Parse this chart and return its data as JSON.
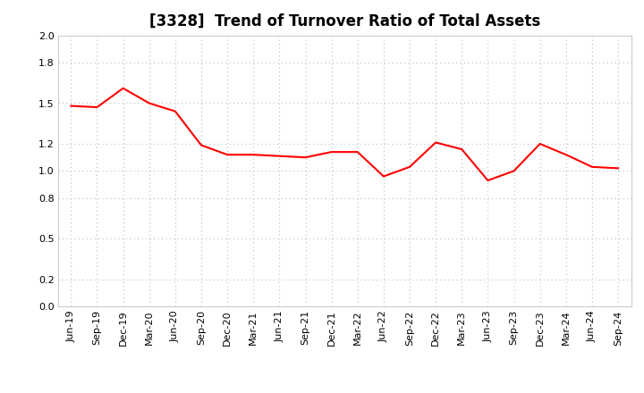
{
  "title": "[3328]  Trend of Turnover Ratio of Total Assets",
  "labels": [
    "Jun-19",
    "Sep-19",
    "Dec-19",
    "Mar-20",
    "Jun-20",
    "Sep-20",
    "Dec-20",
    "Mar-21",
    "Jun-21",
    "Sep-21",
    "Dec-21",
    "Mar-22",
    "Jun-22",
    "Sep-22",
    "Dec-22",
    "Mar-23",
    "Jun-23",
    "Sep-23",
    "Dec-23",
    "Mar-24",
    "Jun-24",
    "Sep-24"
  ],
  "values": [
    1.48,
    1.47,
    1.61,
    1.5,
    1.44,
    1.19,
    1.12,
    1.12,
    1.11,
    1.1,
    1.14,
    1.14,
    0.96,
    1.03,
    1.21,
    1.16,
    0.93,
    1.0,
    1.2,
    1.12,
    1.03,
    1.02
  ],
  "line_color": "#FF0000",
  "line_width": 1.5,
  "ylim": [
    0.0,
    2.0
  ],
  "yticks": [
    0.0,
    0.2,
    0.5,
    0.8,
    1.0,
    1.2,
    1.5,
    1.8,
    2.0
  ],
  "grid_color": "#BBBBBB",
  "bg_color": "#FFFFFF",
  "title_fontsize": 12,
  "tick_fontsize": 8
}
